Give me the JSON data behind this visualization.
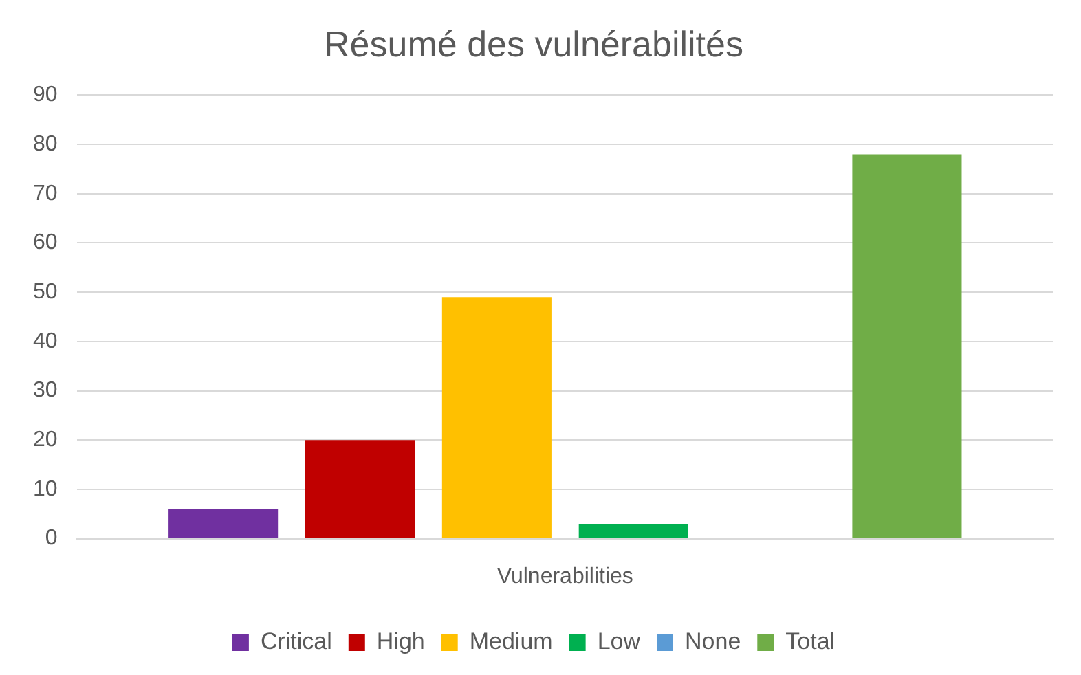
{
  "chart_data": {
    "type": "bar",
    "title": "Résumé des vulnérabilités",
    "categories": [
      "Vulnerabilities"
    ],
    "series": [
      {
        "name": "Critical",
        "color": "#7030a0",
        "values": [
          6
        ]
      },
      {
        "name": "High",
        "color": "#c00000",
        "values": [
          20
        ]
      },
      {
        "name": "Medium",
        "color": "#ffc000",
        "values": [
          49
        ]
      },
      {
        "name": "Low",
        "color": "#00b050",
        "values": [
          3
        ]
      },
      {
        "name": "None",
        "color": "#5b9bd5",
        "values": [
          0
        ]
      },
      {
        "name": "Total",
        "color": "#70ad47",
        "values": [
          78
        ]
      }
    ],
    "ylim": [
      0,
      90
    ],
    "yticks": [
      0,
      10,
      20,
      30,
      40,
      50,
      60,
      70,
      80,
      90
    ],
    "grid": "y",
    "legend": "bottom"
  }
}
